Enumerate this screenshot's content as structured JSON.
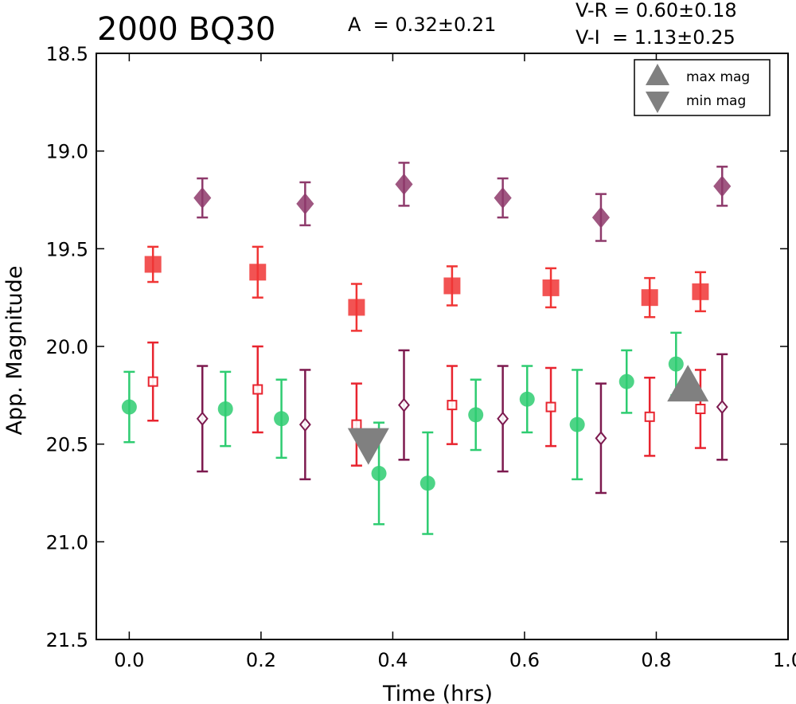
{
  "chart_data": {
    "type": "scatter",
    "title": "2000 BQ30",
    "annotations": {
      "amplitude": "A  = 0.32±0.21",
      "v_r": "V-R = 0.60±0.18",
      "v_i": "V-I  = 1.13±0.25"
    },
    "xlabel": "Time (hrs)",
    "ylabel": "App. Magnitude",
    "xlim": [
      -0.05,
      1.0
    ],
    "ylim": [
      18.5,
      21.5
    ],
    "y_inverted": true,
    "xticks": [
      "0.0",
      "0.2",
      "0.4",
      "0.6",
      "0.8",
      "1.0"
    ],
    "yticks": [
      "18.5",
      "19.0",
      "19.5",
      "20.0",
      "20.5",
      "21.0",
      "21.5"
    ],
    "legend": {
      "position": "top-right",
      "entries": [
        {
          "label": "max mag",
          "marker": "triangle-up",
          "color": "#808080"
        },
        {
          "label": "min mag",
          "marker": "triangle-down",
          "color": "#808080"
        }
      ]
    },
    "series": [
      {
        "marker": "circle",
        "filled": true,
        "color": "#2ecc71",
        "points": [
          {
            "x": 0.0,
            "y": 20.31,
            "err": 0.18
          },
          {
            "x": 0.146,
            "y": 20.32,
            "err": 0.19
          },
          {
            "x": 0.231,
            "y": 20.37,
            "err": 0.2
          },
          {
            "x": 0.379,
            "y": 20.65,
            "err": 0.26
          },
          {
            "x": 0.453,
            "y": 20.7,
            "err": 0.26
          },
          {
            "x": 0.526,
            "y": 20.35,
            "err": 0.18
          },
          {
            "x": 0.604,
            "y": 20.27,
            "err": 0.17
          },
          {
            "x": 0.68,
            "y": 20.4,
            "err": 0.28
          },
          {
            "x": 0.755,
            "y": 20.18,
            "err": 0.16
          },
          {
            "x": 0.83,
            "y": 20.09,
            "err": 0.16
          }
        ]
      },
      {
        "marker": "square",
        "filled": false,
        "color": "#e8242f",
        "points": [
          {
            "x": 0.036,
            "y": 20.18,
            "err": 0.2
          },
          {
            "x": 0.195,
            "y": 20.22,
            "err": 0.22
          },
          {
            "x": 0.345,
            "y": 20.4,
            "err": 0.21
          },
          {
            "x": 0.49,
            "y": 20.3,
            "err": 0.2
          },
          {
            "x": 0.64,
            "y": 20.31,
            "err": 0.2
          },
          {
            "x": 0.79,
            "y": 20.36,
            "err": 0.2
          },
          {
            "x": 0.867,
            "y": 20.32,
            "err": 0.2
          }
        ]
      },
      {
        "marker": "diamond",
        "filled": false,
        "color": "#7d1a4f",
        "points": [
          {
            "x": 0.111,
            "y": 20.37,
            "err": 0.27
          },
          {
            "x": 0.267,
            "y": 20.4,
            "err": 0.28
          },
          {
            "x": 0.417,
            "y": 20.3,
            "err": 0.28
          },
          {
            "x": 0.567,
            "y": 20.37,
            "err": 0.27
          },
          {
            "x": 0.716,
            "y": 20.47,
            "err": 0.28
          },
          {
            "x": 0.9,
            "y": 20.31,
            "err": 0.27
          }
        ]
      },
      {
        "marker": "square",
        "filled": true,
        "color": "#f03535",
        "points": [
          {
            "x": 0.036,
            "y": 19.58,
            "err": 0.09
          },
          {
            "x": 0.195,
            "y": 19.62,
            "err": 0.13
          },
          {
            "x": 0.345,
            "y": 19.8,
            "err": 0.12
          },
          {
            "x": 0.49,
            "y": 19.69,
            "err": 0.1
          },
          {
            "x": 0.64,
            "y": 19.7,
            "err": 0.1
          },
          {
            "x": 0.79,
            "y": 19.75,
            "err": 0.1
          },
          {
            "x": 0.867,
            "y": 19.72,
            "err": 0.1
          }
        ]
      },
      {
        "marker": "diamond",
        "filled": true,
        "color": "#8e3a6b",
        "points": [
          {
            "x": 0.111,
            "y": 19.24,
            "err": 0.1
          },
          {
            "x": 0.267,
            "y": 19.27,
            "err": 0.11
          },
          {
            "x": 0.417,
            "y": 19.17,
            "err": 0.11
          },
          {
            "x": 0.567,
            "y": 19.24,
            "err": 0.1
          },
          {
            "x": 0.716,
            "y": 19.34,
            "err": 0.12
          },
          {
            "x": 0.9,
            "y": 19.18,
            "err": 0.1
          }
        ]
      }
    ],
    "extrema_markers": [
      {
        "type": "max",
        "marker": "triangle-up",
        "x": 0.848,
        "y": 20.2,
        "color": "#808080"
      },
      {
        "type": "min",
        "marker": "triangle-down",
        "x": 0.363,
        "y": 20.5,
        "color": "#808080"
      }
    ]
  }
}
